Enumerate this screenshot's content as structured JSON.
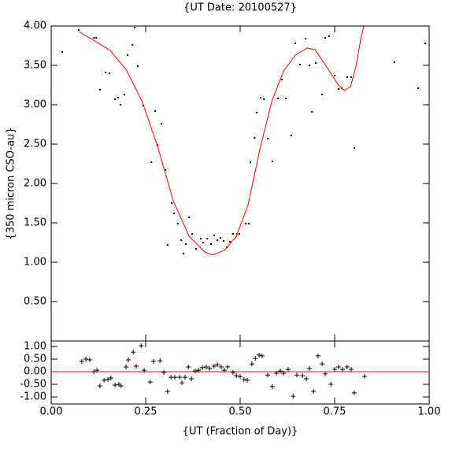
{
  "chart_data": [
    {
      "type": "scatter",
      "title": "{UT Date: 20100527}",
      "y_label": "{350 micron CSO-au}",
      "xlim": [
        0,
        1
      ],
      "ylim": [
        0,
        4
      ],
      "yticks": [
        {
          "value": 0.5,
          "label": "0.50"
        },
        {
          "value": 1,
          "label": "1.00"
        },
        {
          "value": 1.5,
          "label": "1.50"
        },
        {
          "value": 2,
          "label": "2.00"
        },
        {
          "value": 2.5,
          "label": "2.50"
        },
        {
          "value": 3,
          "label": "3.00"
        },
        {
          "value": 3.5,
          "label": "3.50"
        },
        {
          "value": 4,
          "label": "4.00"
        }
      ],
      "series": [
        {
          "style": "dot",
          "color": "#000000",
          "x": [
            0.029,
            0.073,
            0.113,
            0.119,
            0.129,
            0.144,
            0.154,
            0.169,
            0.177,
            0.183,
            0.194,
            0.202,
            0.215,
            0.221,
            0.229,
            0.244,
            0.265,
            0.275,
            0.281,
            0.292,
            0.302,
            0.308,
            0.319,
            0.325,
            0.335,
            0.344,
            0.35,
            0.356,
            0.365,
            0.373,
            0.383,
            0.396,
            0.402,
            0.413,
            0.423,
            0.431,
            0.44,
            0.448,
            0.456,
            0.465,
            0.473,
            0.481,
            0.492,
            0.498,
            0.515,
            0.523,
            0.527,
            0.538,
            0.544,
            0.554,
            0.563,
            0.573,
            0.585,
            0.6,
            0.61,
            0.621,
            0.635,
            0.646,
            0.658,
            0.673,
            0.683,
            0.69,
            0.7,
            0.717,
            0.725,
            0.735,
            0.75,
            0.76,
            0.769,
            0.783,
            0.794,
            0.802,
            0.908,
            0.971,
            0.99
          ],
          "values": [
            3.67,
            3.95,
            3.85,
            3.85,
            3.19,
            3.41,
            3.4,
            3.07,
            3.09,
            3.0,
            3.13,
            3.63,
            3.76,
            3.98,
            3.49,
            2.99,
            2.27,
            2.92,
            2.49,
            2.76,
            2.17,
            1.22,
            1.75,
            1.62,
            1.49,
            1.28,
            1.11,
            1.23,
            1.57,
            1.36,
            1.17,
            1.3,
            1.25,
            1.3,
            1.23,
            1.34,
            1.28,
            1.31,
            1.27,
            1.19,
            1.26,
            1.36,
            1.36,
            1.36,
            1.49,
            1.49,
            2.27,
            2.58,
            2.9,
            3.09,
            3.07,
            2.57,
            2.28,
            3.08,
            3.32,
            3.08,
            2.61,
            3.78,
            3.51,
            3.84,
            3.5,
            2.91,
            3.53,
            3.13,
            3.85,
            3.87,
            3.37,
            3.2,
            3.21,
            3.35,
            3.35,
            2.45,
            3.54,
            3.21,
            3.78
          ]
        },
        {
          "style": "line",
          "color": "#ff0000",
          "x": [
            0.073,
            0.115,
            0.156,
            0.198,
            0.24,
            0.281,
            0.323,
            0.365,
            0.406,
            0.427,
            0.458,
            0.49,
            0.521,
            0.552,
            0.583,
            0.615,
            0.646,
            0.677,
            0.698,
            0.729,
            0.76,
            0.775,
            0.792,
            0.806,
            0.819,
            0.827
          ],
          "values": [
            3.93,
            3.81,
            3.69,
            3.45,
            3.05,
            2.48,
            1.78,
            1.33,
            1.13,
            1.09,
            1.15,
            1.33,
            1.73,
            2.43,
            3.03,
            3.43,
            3.63,
            3.72,
            3.7,
            3.48,
            3.25,
            3.18,
            3.23,
            3.48,
            3.83,
            4.0
          ]
        }
      ]
    },
    {
      "type": "scatter",
      "x_label": "{UT (Fraction of Day)}",
      "xlim": [
        0,
        1
      ],
      "ylim": [
        -1.28,
        1.22
      ],
      "xticks": [
        {
          "value": 0,
          "label": "0.00"
        },
        {
          "value": 0.25,
          "label": "0.25"
        },
        {
          "value": 0.5,
          "label": "0.50"
        },
        {
          "value": 0.75,
          "label": "0.75"
        },
        {
          "value": 1,
          "label": "1.00"
        }
      ],
      "yticks": [
        {
          "value": -1,
          "label": "-1.00"
        },
        {
          "value": -0.5,
          "label": "-0.50"
        },
        {
          "value": 0,
          "label": "0.00"
        },
        {
          "value": 0.5,
          "label": "0.50"
        },
        {
          "value": 1,
          "label": "1.00"
        }
      ],
      "zero_line_color": "#ff0000",
      "series": [
        {
          "style": "plus",
          "color": "#000000",
          "x": [
            0.081,
            0.092,
            0.102,
            0.113,
            0.121,
            0.129,
            0.14,
            0.15,
            0.158,
            0.169,
            0.179,
            0.185,
            0.198,
            0.204,
            0.217,
            0.225,
            0.238,
            0.246,
            0.262,
            0.271,
            0.288,
            0.298,
            0.308,
            0.317,
            0.327,
            0.34,
            0.346,
            0.354,
            0.363,
            0.371,
            0.381,
            0.39,
            0.4,
            0.41,
            0.419,
            0.431,
            0.44,
            0.45,
            0.458,
            0.467,
            0.481,
            0.49,
            0.5,
            0.51,
            0.519,
            0.531,
            0.54,
            0.55,
            0.558,
            0.573,
            0.585,
            0.596,
            0.606,
            0.615,
            0.627,
            0.64,
            0.65,
            0.665,
            0.675,
            0.683,
            0.694,
            0.706,
            0.717,
            0.725,
            0.74,
            0.75,
            0.76,
            0.771,
            0.783,
            0.794,
            0.802,
            0.829
          ],
          "values": [
            0.41,
            0.5,
            0.47,
            0.0,
            0.06,
            -0.56,
            -0.34,
            -0.31,
            -0.25,
            -0.53,
            -0.5,
            -0.56,
            0.19,
            0.47,
            0.78,
            0.22,
            1.03,
            0.06,
            -0.41,
            0.41,
            0.44,
            -0.03,
            -0.78,
            -0.22,
            -0.22,
            -0.22,
            -0.44,
            -0.22,
            0.19,
            -0.28,
            0.03,
            0.06,
            0.16,
            0.19,
            0.13,
            0.22,
            0.28,
            0.19,
            0.06,
            0.19,
            -0.03,
            -0.16,
            -0.19,
            -0.31,
            -0.34,
            0.31,
            0.53,
            0.66,
            0.63,
            -0.13,
            -0.59,
            -0.06,
            0.03,
            -0.06,
            0.09,
            -0.97,
            -0.13,
            -0.16,
            -0.28,
            0.13,
            -0.78,
            0.63,
            0.31,
            -0.09,
            -0.5,
            0.09,
            0.19,
            0.09,
            0.19,
            0.09,
            -0.84,
            -0.19
          ]
        }
      ]
    }
  ]
}
